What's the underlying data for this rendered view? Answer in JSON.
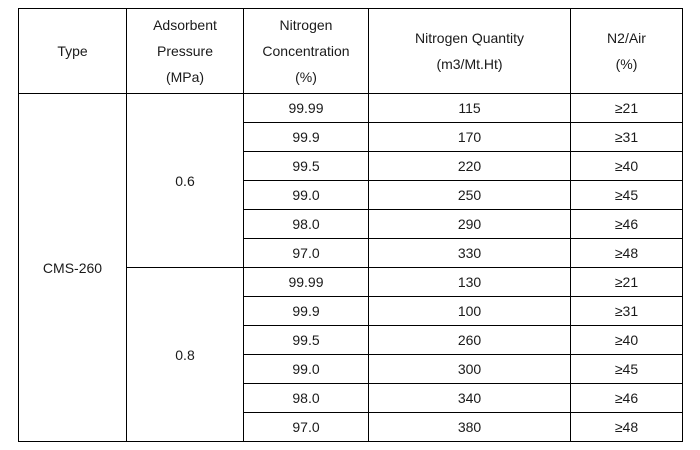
{
  "table": {
    "headers": [
      [
        "Type"
      ],
      [
        "Adsorbent",
        "Pressure",
        "(MPa)"
      ],
      [
        "Nitrogen",
        "Concentration",
        "(%)"
      ],
      [
        "Nitrogen Quantity",
        "(m3/Mt.Ht)"
      ],
      [
        "N2/Air",
        "(%)"
      ]
    ],
    "type": "CMS-260",
    "groups": [
      {
        "pressure": "0.6",
        "rows": [
          {
            "concentration": "99.99",
            "quantity": "115",
            "ratio": "≥21"
          },
          {
            "concentration": "99.9",
            "quantity": "170",
            "ratio": "≥31"
          },
          {
            "concentration": "99.5",
            "quantity": "220",
            "ratio": "≥40"
          },
          {
            "concentration": "99.0",
            "quantity": "250",
            "ratio": "≥45"
          },
          {
            "concentration": "98.0",
            "quantity": "290",
            "ratio": "≥46"
          },
          {
            "concentration": "97.0",
            "quantity": "330",
            "ratio": "≥48"
          }
        ]
      },
      {
        "pressure": "0.8",
        "rows": [
          {
            "concentration": "99.99",
            "quantity": "130",
            "ratio": "≥21"
          },
          {
            "concentration": "99.9",
            "quantity": "100",
            "ratio": "≥31"
          },
          {
            "concentration": "99.5",
            "quantity": "260",
            "ratio": "≥40"
          },
          {
            "concentration": "99.0",
            "quantity": "300",
            "ratio": "≥45"
          },
          {
            "concentration": "98.0",
            "quantity": "340",
            "ratio": "≥46"
          },
          {
            "concentration": "97.0",
            "quantity": "380",
            "ratio": "≥48"
          }
        ]
      }
    ]
  }
}
